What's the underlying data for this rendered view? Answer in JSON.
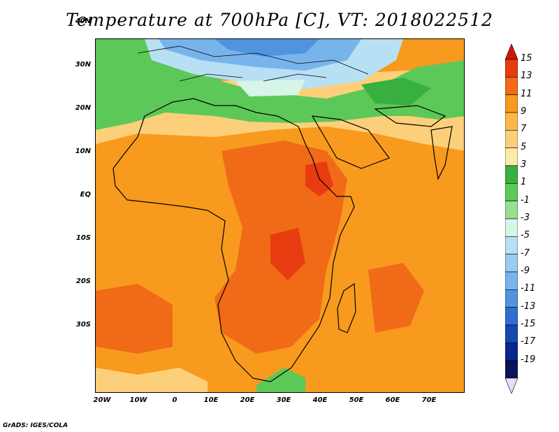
{
  "title": "Temperature at 700hPa [C], VT: 2018022512",
  "credit": "GrADS: IGES/COLA",
  "lat_labels": [
    "40N",
    "30N",
    "20N",
    "10N",
    "EQ",
    "10S",
    "20S",
    "30S"
  ],
  "lon_labels": [
    "20W",
    "10W",
    "0",
    "10E",
    "20E",
    "30E",
    "40E",
    "50E",
    "60E",
    "70E"
  ],
  "colorbar": {
    "levels": [
      "15",
      "13",
      "11",
      "9",
      "7",
      "5",
      "3",
      "1",
      "-1",
      "-3",
      "-5",
      "-7",
      "-9",
      "-11",
      "-13",
      "-15",
      "-17",
      "-19"
    ],
    "colors": [
      "#d01800",
      "#e83c10",
      "#f06a18",
      "#f89a1e",
      "#fbb845",
      "#fcd07a",
      "#fde9a8",
      "#38b040",
      "#5cc858",
      "#98e090",
      "#d6f4e8",
      "#b8e0f4",
      "#98ccf0",
      "#78b4ec",
      "#5094e0",
      "#2c70d0",
      "#1648b0",
      "#082890",
      "#081458",
      "#e0e0ff"
    ]
  }
}
